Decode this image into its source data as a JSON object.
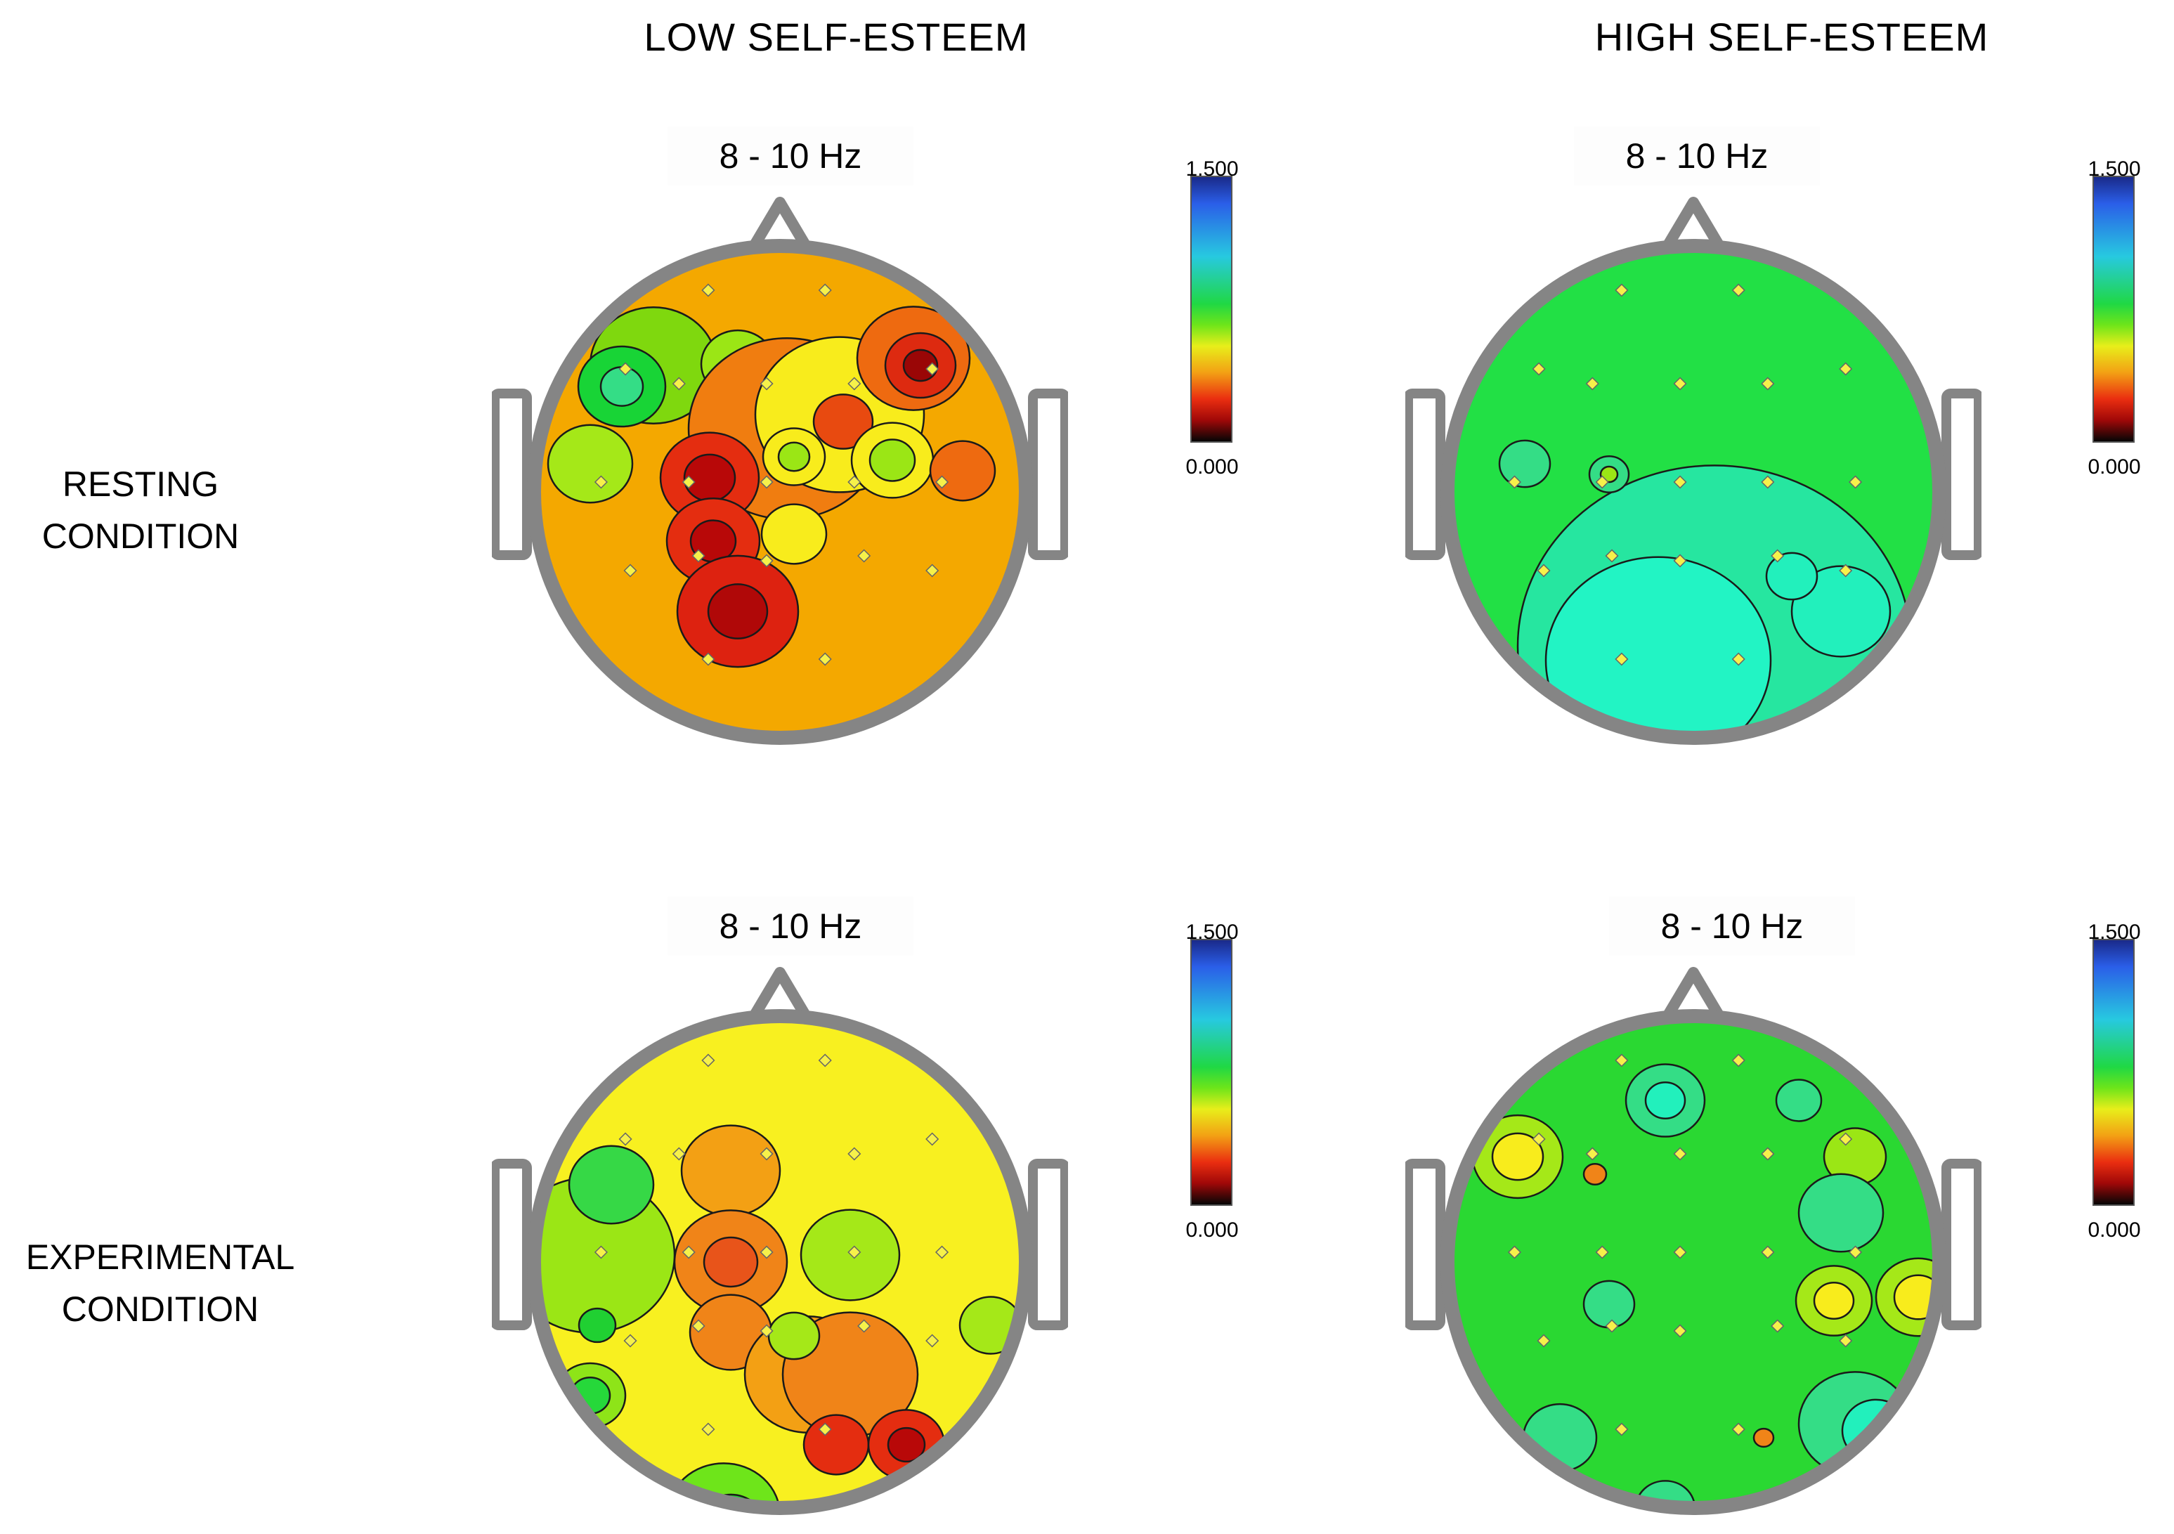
{
  "columns": [
    {
      "title": "LOW SELF-ESTEEM"
    },
    {
      "title": "HIGH SELF-ESTEEM"
    }
  ],
  "rows": [
    {
      "label_line1": "RESTING",
      "label_line2": "CONDITION"
    },
    {
      "label_line1": "EXPERIMENTAL",
      "label_line2": "CONDITION"
    }
  ],
  "maps": [
    {
      "band": "8 - 10 Hz",
      "base_color": "#f4a800"
    },
    {
      "band": "8 - 10 Hz",
      "base_color": "#22e045"
    },
    {
      "band": "8 - 10 Hz",
      "base_color": "#f8f020"
    },
    {
      "band": "8 - 10 Hz",
      "base_color": "#2ad832"
    }
  ],
  "color_scale": {
    "max": "1.500",
    "min": "0.000"
  },
  "colors": {
    "head_outline": "#858585",
    "contour": "#1a1a1a",
    "electrode": "#f6f14a"
  }
}
